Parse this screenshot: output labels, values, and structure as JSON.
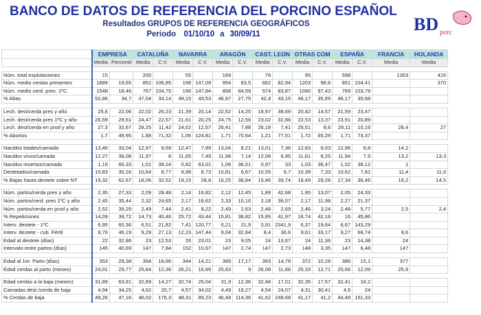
{
  "header": {
    "title": "BANCO DE DATOS DE REFERENCIA DEL PORCINO ESPAÑOL",
    "subtitle": "Resultados GRUPOS DE REFERENCIA GEOGRÁFICOS",
    "period_label": "Periodo",
    "period_from": "01/10/10",
    "period_sep": "a",
    "period_to": "30/09/11"
  },
  "logo": {
    "text": "BD",
    "sub": "porc"
  },
  "table": {
    "groups": [
      {
        "name": "EMPRESA",
        "sub": [
          "Media",
          "Percentil"
        ]
      },
      {
        "name": "CATALUÑA",
        "sub": [
          "Media",
          "C.V."
        ]
      },
      {
        "name": "NAVARRA",
        "sub": [
          "Media",
          "C.V."
        ]
      },
      {
        "name": "ARAGÓN",
        "sub": [
          "Media",
          "C.V."
        ]
      },
      {
        "name": "CAST. LEON",
        "sub": [
          "Media",
          "C.V."
        ]
      },
      {
        "name": "OTRAS COM",
        "sub": [
          "Media",
          "C.V."
        ]
      },
      {
        "name": "ESPAÑA",
        "sub": [
          "Media",
          "C.V."
        ]
      },
      {
        "name": "FRANCIA",
        "sub": [
          "Media"
        ]
      },
      {
        "name": "HOLANDA",
        "sub": [
          "Media"
        ]
      }
    ],
    "sections": [
      [
        {
          "label": "Núm. total explotaciones",
          "values": [
            "15",
            null,
            "200",
            null,
            "55",
            null,
            "169",
            null,
            "79",
            null,
            "95",
            null,
            "598",
            null,
            "1353",
            "416"
          ]
        },
        {
          "label": "Núm. medio cerdas presentes",
          "values": [
            "1689",
            "19,65",
            "852",
            "106,85",
            "198",
            "147,09",
            "954",
            "83,5",
            "662",
            "82,94",
            "1203",
            "98,6",
            "851",
            "104,41",
            null,
            "370"
          ]
        },
        {
          "label": "Núm. medio cerd. pres. 1ºC.",
          "values": [
            "1548",
            "18,46",
            "767",
            "104,75",
            "196",
            "147,84",
            "858",
            "84,59",
            "574",
            "83,87",
            "1090",
            "97,43",
            "769",
            "103,79",
            null,
            null
          ]
        },
        {
          "label": "% Altas",
          "values": [
            "52,86",
            "34,7",
            "47,04",
            "34,14",
            "49,15",
            "43,53",
            "46,97",
            "27,75",
            "42,4",
            "43,15",
            "46,17",
            "35,69",
            "46,17",
            "35,68",
            null,
            null
          ]
        }
      ],
      [
        {
          "label": "Lech. dest/cerda pres y año",
          "values": [
            "25,6",
            "22,06",
            "22,02",
            "26,23",
            "21,39",
            "20,14",
            "22,52",
            "14,25",
            "19,97",
            "38,69",
            "20,42",
            "14,57",
            "21,59",
            "23,47",
            null,
            null
          ]
        },
        {
          "label": "Lech. dest/cerda pres 1ºC y año",
          "values": [
            "26,59",
            "29,61",
            "24,47",
            "22,57",
            "21,61",
            "20,25",
            "24,75",
            "12,56",
            "23,02",
            "32,86",
            "22,53",
            "13,37",
            "23,91",
            "20,89",
            null,
            null
          ]
        },
        {
          "label": "Lech. dest/cerda en prod y año",
          "values": [
            "27,3",
            "32,67",
            "28,25",
            "11,42",
            "24,02",
            "12,57",
            "26,41",
            "7,88",
            "26,18",
            "7,41",
            "25,51",
            "8,6",
            "26,11",
            "10,16",
            "28,4",
            "27"
          ]
        },
        {
          "label": "% Abortos",
          "values": [
            "1,7",
            "49,95",
            "1,88",
            "71,32",
            "1,06",
            "124,81",
            "1,71",
            "70,64",
            "1,21",
            "77,51",
            "1,72",
            "65,29",
            "1,71",
            "73,37",
            null,
            null
          ]
        }
      ],
      [
        {
          "label": "Nacidos totales/camada",
          "values": [
            "13,46",
            "33,04",
            "12,97",
            "9,69",
            "12,47",
            "7,99",
            "13,04",
            "8,21",
            "13,01",
            "7,36",
            "12,83",
            "9,03",
            "12,96",
            "8,8",
            "14,2",
            null
          ]
        },
        {
          "label": "Nacidos vivos/camada",
          "values": [
            "12,27",
            "36,08",
            "11,97",
            "8",
            "11,65",
            "7,49",
            "11,98",
            "7,14",
            "12,06",
            "6,95",
            "11,81",
            "8,25",
            "11,94",
            "7,9",
            "13,2",
            "13,3"
          ]
        },
        {
          "label": "Nacidos muertos/camada",
          "values": [
            "1,19",
            "66,33",
            "1,01",
            "39,24",
            "0,82",
            "63,01",
            "1,06",
            "36,51",
            "0,97",
            "33",
            "1,03",
            "36,47",
            "1,02",
            "38,12",
            "1",
            null
          ]
        },
        {
          "label": "Destetados/camada",
          "values": [
            "10,83",
            "35,16",
            "10,64",
            "8,77",
            "9,98",
            "8,73",
            "10,81",
            "6,67",
            "10,55",
            "6,7",
            "10,39",
            "7,33",
            "10,62",
            "7,81",
            "11,4",
            "11,6"
          ]
        },
        {
          "label": "% Bajas hasta destete sobre NT",
          "values": [
            "19,32",
            "62,67",
            "18,06",
            "32,52",
            "19,15",
            "28,8",
            "16,25",
            "38,84",
            "15,46",
            "39,74",
            "18,49",
            "29,26",
            "17,34",
            "36,46",
            "19,2",
            "14,5"
          ]
        }
      ],
      [
        {
          "label": "Núm. partos/cerda pres y año",
          "values": [
            "2,35",
            "27,33",
            "2,09",
            "28,48",
            "2,14",
            "16,82",
            "2,12",
            "12,45",
            "1,89",
            "42,68",
            "1,95",
            "13,07",
            "2,05",
            "24,33",
            null,
            null
          ]
        },
        {
          "label": "Núm. partos/cerd. pres 1ºC y año",
          "values": [
            "2,45",
            "35,44",
            "2,32",
            "24,65",
            "2,17",
            "16,62",
            "2,33",
            "10,16",
            "2,18",
            "36,07",
            "2,17",
            "11,98",
            "2,27",
            "21,37",
            null,
            null
          ]
        },
        {
          "label": "Núm. partos/cerda en prod y año",
          "values": [
            "2,52",
            "39,29",
            "2,49",
            "7,44",
            "2,41",
            "8,22",
            "2,49",
            "2,63",
            "2,48",
            "2,69",
            "2,46",
            "3,24",
            "2,48",
            "5,77",
            "2,5",
            "2,4"
          ]
        },
        {
          "label": "% Repeticiones",
          "values": [
            "14,09",
            "39,72",
            "14,73",
            "40,46",
            "25,72",
            "43,44",
            "15,81",
            "38,82",
            "15,89",
            "41,97",
            "16,74",
            "42,16",
            "16",
            "45,86",
            null,
            null
          ]
        },
        {
          "label": "Interv. destete - 1ºC",
          "values": [
            "6,95",
            "60,36",
            "6,51",
            "21,82",
            "7,41",
            "120,77",
            "6,21",
            "21,9",
            "0,91",
            "2341,9",
            "6,37",
            "19,64",
            "6,67",
            "143,29",
            null,
            null
          ]
        },
        {
          "label": "Interv. destete - cub. Fértil",
          "values": [
            "8,76",
            "46,19",
            "9,29",
            "27,13",
            "12,23",
            "147,44",
            "9,04",
            "32,84",
            "8,4",
            "36,6",
            "9,61",
            "33,17",
            "9,27",
            "68,74",
            "8,6",
            null
          ]
        },
        {
          "label": "Edad al destete (días)",
          "values": [
            "22",
            "32,86",
            "23",
            "12,53",
            "26",
            "23,01",
            "23",
            "9,05",
            "24",
            "13,67",
            "24",
            "11,36",
            "23",
            "14,38",
            "24",
            null
          ]
        },
        {
          "label": "Intervalo entre partos (días)",
          "values": [
            "145",
            "40,69",
            "147",
            "7,84",
            "152",
            "10,67",
            "147",
            "2,74",
            "147",
            "2,73",
            "148",
            "3,35",
            "147",
            "6,48",
            "147",
            null
          ]
        }
      ],
      [
        {
          "label": "Edad al 1er. Parto (días)",
          "values": [
            "353",
            "29,38",
            "394",
            "16,66",
            "344",
            "14,21",
            "389",
            "17,17",
            "393",
            "14,78",
            "372",
            "10,28",
            "386",
            "15,1",
            "377",
            null
          ]
        },
        {
          "label": "Edad cerdas al parto (meses)",
          "values": [
            "24,01",
            "29,77",
            "25,84",
            "12,36",
            "26,21",
            "16,99",
            "25,63",
            "9",
            "26,08",
            "11,66",
            "25,33",
            "12,71",
            "25,66",
            "12,09",
            "25,9",
            null
          ]
        }
      ],
      [
        {
          "label": "Edad cerdas a la baja (meses)",
          "values": [
            "31,89",
            "63,91",
            "32,89",
            "14,27",
            "32,74",
            "25,04",
            "31,9",
            "12,36",
            "32,48",
            "17,01",
            "32,35",
            "17,57",
            "32,41",
            "16,2",
            null,
            null
          ]
        },
        {
          "label": "Camadas dest./cerda de baja",
          "values": [
            "4,94",
            "34,25",
            "4,62",
            "20,7",
            "4,57",
            "34,02",
            "4,49",
            "18,27",
            "4,54",
            "24,07",
            "4,31",
            "30,41",
            "4,5",
            "24",
            null,
            null
          ]
        },
        {
          "label": "% Cerdas de baja",
          "values": [
            "49,26",
            "47,16",
            "46,02",
            "176,3",
            "48,31",
            "89,23",
            "46,48",
            "114,36",
            "41,62",
            "249,68",
            "41,17",
            "41,2",
            "44,46",
            "151,33",
            null,
            null
          ]
        }
      ]
    ]
  }
}
